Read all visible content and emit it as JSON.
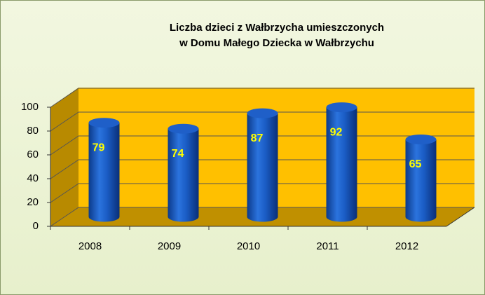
{
  "chart_data": {
    "type": "bar",
    "title": [
      "Liczba dzieci z Wałbrzycha umieszczonych",
      "w Domu Małego Dziecka w Wałbrzychu"
    ],
    "categories": [
      "2008",
      "2009",
      "2010",
      "2011",
      "2012"
    ],
    "values": [
      79,
      74,
      87,
      92,
      65
    ],
    "color": "#1f5fc8",
    "ylim": [
      0,
      100
    ],
    "yticks": [
      0,
      20,
      40,
      60,
      80,
      100
    ],
    "grid": true
  }
}
